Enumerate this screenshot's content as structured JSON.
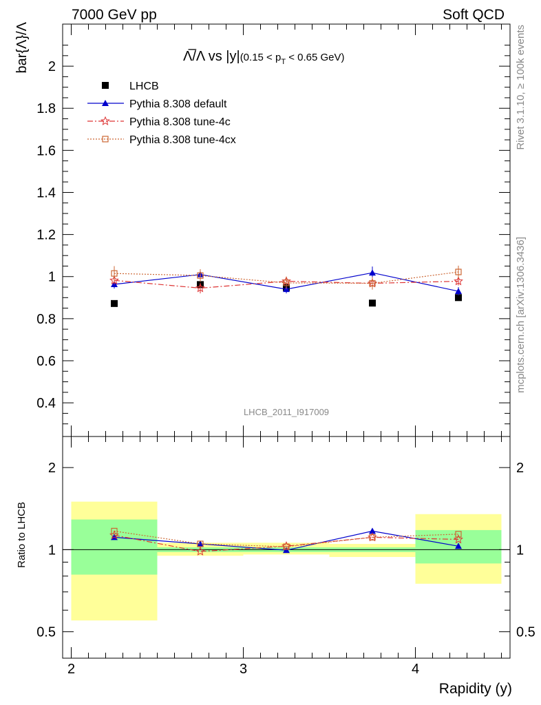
{
  "header": {
    "left": "7000 GeV pp",
    "right": "Soft QCD"
  },
  "side_text": {
    "rivet": "Rivet 3.1.10, ≥ 100k events",
    "mcplots": "mcplots.cern.ch [arXiv:1306.3436]"
  },
  "plot_title": {
    "main": "Λ̅/Λ vs |y|",
    "range": "(0.15 < p",
    "sub": "T",
    "range_end": " < 0.65 GeV)"
  },
  "watermark": "LHCB_2011_I917009",
  "chart_data": [
    {
      "type": "scatter",
      "panel": "main",
      "ylabel": "bar{Λ}/Λ",
      "xlabel": "",
      "xlim": [
        1.95,
        4.55
      ],
      "ylim": [
        0.24,
        2.2
      ],
      "yticks": [
        0.4,
        0.6,
        0.8,
        1,
        1.2,
        1.4,
        1.6,
        1.8,
        2
      ],
      "ytick_labels": [
        "0.4",
        "0.6",
        "0.8",
        "1",
        "1.2",
        "1.4",
        "1.6",
        "1.8",
        "2"
      ],
      "legend_position": "top-left",
      "x": [
        2.25,
        2.75,
        3.25,
        3.75,
        4.25
      ],
      "series": [
        {
          "name": "LHCB",
          "style": "data",
          "color": "#000000",
          "values": [
            0.872,
            0.962,
            0.948,
            0.874,
            0.9
          ]
        },
        {
          "name": "Pythia 8.308 default",
          "style": "solid",
          "marker": "triangle",
          "color": "#0000cc",
          "values": [
            0.963,
            1.01,
            0.94,
            1.018,
            0.93
          ],
          "errors": [
            0.02,
            0.025,
            0.02,
            0.03,
            0.02
          ]
        },
        {
          "name": "Pythia 8.308 tune-4c",
          "style": "dashdot",
          "marker": "star",
          "color": "#dd3333",
          "values": [
            0.982,
            0.945,
            0.978,
            0.968,
            0.978
          ],
          "errors": [
            0.02,
            0.025,
            0.02,
            0.02,
            0.02
          ]
        },
        {
          "name": "Pythia 8.308 tune-4cx",
          "style": "dotted",
          "marker": "open-square",
          "color": "#cc6633",
          "values": [
            1.015,
            1.005,
            0.97,
            0.968,
            1.022
          ],
          "errors": [
            0.035,
            0.03,
            0.03,
            0.03,
            0.03
          ]
        }
      ]
    },
    {
      "type": "scatter",
      "panel": "ratio",
      "ylabel": "Ratio to LHCB",
      "xlabel": "Rapidity (y)",
      "log_y": true,
      "xlim": [
        1.95,
        4.55
      ],
      "ylim": [
        0.4,
        2.6
      ],
      "yticks": [
        0.5,
        1,
        2
      ],
      "ytick_labels": [
        "0.5",
        "1",
        "2"
      ],
      "xticks": [
        2,
        3,
        4
      ],
      "xtick_labels": [
        "2",
        "3",
        "4"
      ],
      "bands": [
        {
          "x0": 2.0,
          "x1": 2.5,
          "green": [
            0.81,
            1.29
          ],
          "yellow": [
            0.55,
            1.5
          ]
        },
        {
          "x0": 2.5,
          "x1": 3.0,
          "green": [
            0.98,
            1.02
          ],
          "yellow": [
            0.95,
            1.06
          ]
        },
        {
          "x0": 3.0,
          "x1": 3.5,
          "green": [
            0.98,
            1.02
          ],
          "yellow": [
            0.96,
            1.06
          ]
        },
        {
          "x0": 3.5,
          "x1": 4.0,
          "green": [
            0.98,
            1.02
          ],
          "yellow": [
            0.94,
            1.05
          ]
        },
        {
          "x0": 4.0,
          "x1": 4.5,
          "green": [
            0.89,
            1.18
          ],
          "yellow": [
            0.75,
            1.35
          ]
        }
      ],
      "x": [
        2.25,
        2.75,
        3.25,
        3.75,
        4.25
      ],
      "series": [
        {
          "name": "Pythia 8.308 default",
          "color": "#0000cc",
          "values": [
            1.11,
            1.05,
            0.995,
            1.17,
            1.03
          ]
        },
        {
          "name": "Pythia 8.308 tune-4c",
          "color": "#dd3333",
          "values": [
            1.13,
            0.985,
            1.03,
            1.11,
            1.09
          ]
        },
        {
          "name": "Pythia 8.308 tune-4cx",
          "color": "#cc6633",
          "values": [
            1.17,
            1.05,
            1.025,
            1.11,
            1.14
          ]
        }
      ]
    }
  ],
  "colors": {
    "band_green": "#99ff99",
    "band_yellow": "#ffff99"
  }
}
